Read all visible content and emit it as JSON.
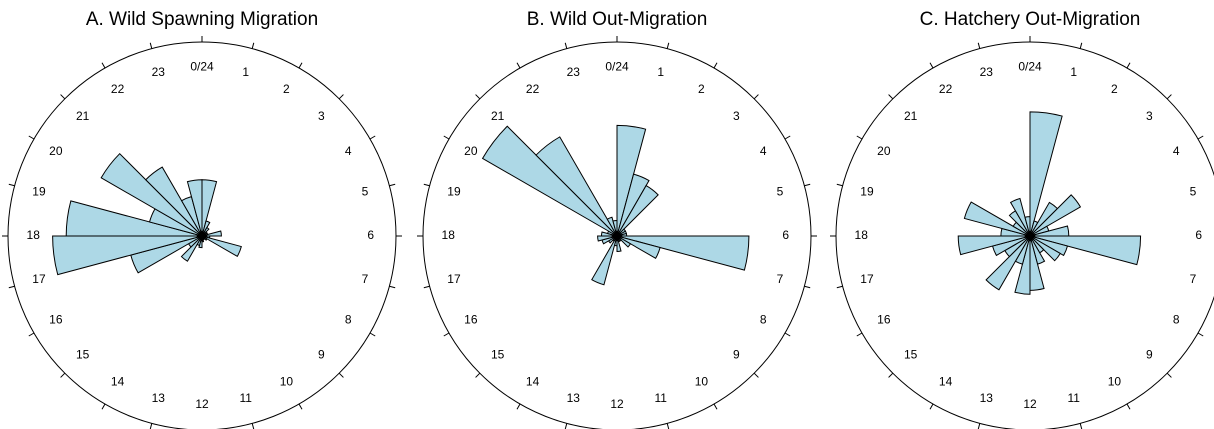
{
  "chart_data": [
    {
      "type": "rose",
      "title": "A. Wild Spawning Migration",
      "categories": [
        "0/24",
        "1",
        "2",
        "3",
        "4",
        "5",
        "6",
        "7",
        "8",
        "9",
        "10",
        "11",
        "12",
        "13",
        "14",
        "15",
        "16",
        "17",
        "18",
        "19",
        "20",
        "21",
        "22",
        "23"
      ],
      "values": [
        29,
        8,
        5,
        3,
        3,
        10,
        4,
        21,
        3,
        2,
        2,
        3,
        6,
        5,
        15,
        8,
        38,
        77,
        70,
        28,
        60,
        41,
        21,
        29
      ],
      "rlim": [
        0,
        100
      ],
      "color": "#add8e6"
    },
    {
      "type": "rose",
      "title": "B. Wild Out-Migration",
      "categories": [
        "0/24",
        "1",
        "2",
        "3",
        "4",
        "5",
        "6",
        "7",
        "8",
        "9",
        "10",
        "11",
        "12",
        "13",
        "14",
        "15",
        "16",
        "17",
        "18",
        "19",
        "20",
        "21",
        "22",
        "23"
      ],
      "values": [
        57,
        33,
        30,
        5,
        5,
        5,
        68,
        23,
        8,
        3,
        3,
        8,
        5,
        26,
        3,
        5,
        8,
        10,
        8,
        5,
        80,
        59,
        10,
        8
      ],
      "rlim": [
        0,
        100
      ],
      "color": "#add8e6"
    },
    {
      "type": "rose",
      "title": "C. Hatchery Out-Migration",
      "categories": [
        "0/24",
        "1",
        "2",
        "3",
        "4",
        "5",
        "6",
        "7",
        "8",
        "9",
        "10",
        "11",
        "12",
        "13",
        "14",
        "15",
        "16",
        "17",
        "18",
        "19",
        "20",
        "21",
        "22",
        "23"
      ],
      "values": [
        64,
        8,
        20,
        30,
        10,
        20,
        57,
        20,
        18,
        10,
        15,
        28,
        30,
        15,
        32,
        15,
        20,
        37,
        15,
        35,
        10,
        15,
        20,
        10
      ],
      "rlim": [
        0,
        100
      ],
      "color": "#add8e6"
    }
  ]
}
